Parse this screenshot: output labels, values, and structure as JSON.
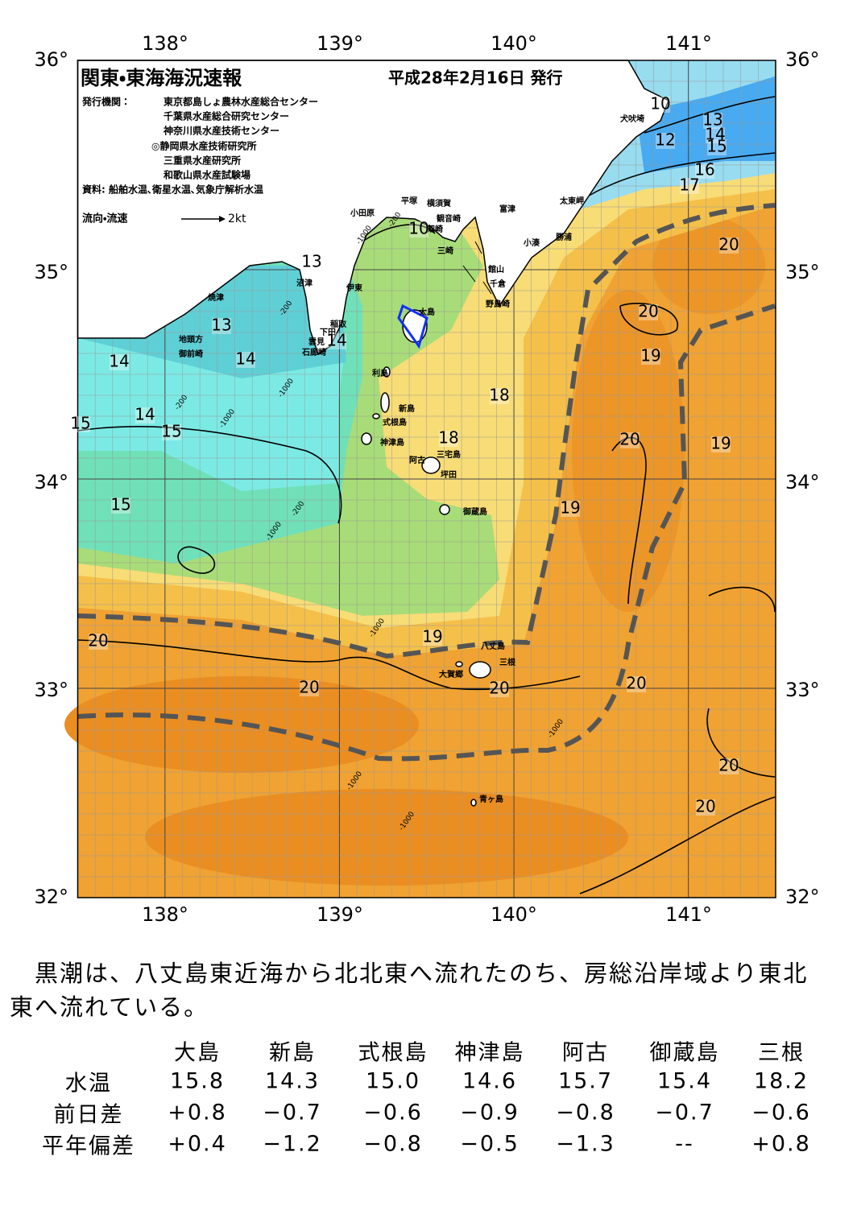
{
  "map": {
    "title": "関東・東海海況速報",
    "date": "平成28年2月16日 発行",
    "publisher_label": "発行機関：",
    "publishers": [
      "東京都島しょ農林水産総合センター",
      "千葉県水産総合研究センター",
      "神奈川県水産技術センター",
      "◎静岡県水産技術研究所",
      "三重県水産研究所",
      "和歌山県水産試験場"
    ],
    "source": "資料: 船舶水温､衛星水温､気象庁解析水温",
    "legend": {
      "label": "流向・流速",
      "unit": "2kt"
    },
    "lon_labels": [
      "138°",
      "139°",
      "140°",
      "141°"
    ],
    "lat_labels": [
      "36°",
      "35°",
      "34°",
      "33°",
      "32°"
    ],
    "place_names": [
      "犬吠埼",
      "太東岬",
      "勝浦",
      "小湊",
      "富津",
      "横須賀",
      "観音崎",
      "平塚",
      "小田原",
      "剱崎",
      "三崎",
      "館山",
      "千倉",
      "野島崎",
      "沼津",
      "伊東",
      "焼津",
      "稲取",
      "下田",
      "雲見",
      "石廊崎",
      "地頭方",
      "御前崎",
      "大島",
      "利島",
      "新島",
      "式根島",
      "神津島",
      "三宅島",
      "阿古",
      "坪田",
      "御蔵島",
      "八丈島",
      "三根",
      "大賀郷",
      "青ヶ島"
    ],
    "isotherm_labels": [
      10,
      12,
      13,
      14,
      15,
      16,
      17,
      20,
      20,
      19,
      13,
      13,
      14,
      14,
      14,
      14,
      15,
      15,
      18,
      18,
      20,
      19,
      19,
      15,
      19,
      20,
      20,
      20,
      20,
      20,
      20,
      10
    ],
    "depth_labels": [
      "-200",
      "-1000",
      "-200",
      "-1000",
      "-1000",
      "-200",
      "-200",
      "-1000",
      "-1000",
      "-1000",
      "-1000",
      "-1000"
    ]
  },
  "summary": "　黒潮は、八丈島東近海から北北東へ流れたのち、房総沿岸域より東北東へ流れている。",
  "table": {
    "columns": [
      "大島",
      "新島",
      "式根島",
      "神津島",
      "阿古",
      "御蔵島",
      "三根"
    ],
    "rows": [
      {
        "label": "水温",
        "values": [
          "15.8",
          "14.3",
          "15.0",
          "14.6",
          "15.7",
          "15.4",
          "18.2"
        ]
      },
      {
        "label": "前日差",
        "values": [
          "+0.8",
          "−0.7",
          "−0.6",
          "−0.9",
          "−0.8",
          "−0.7",
          "−0.6"
        ]
      },
      {
        "label": "平年偏差",
        "values": [
          "+0.4",
          "−1.2",
          "−0.8",
          "−0.5",
          "−1.3",
          "--",
          "+0.8"
        ]
      }
    ]
  }
}
